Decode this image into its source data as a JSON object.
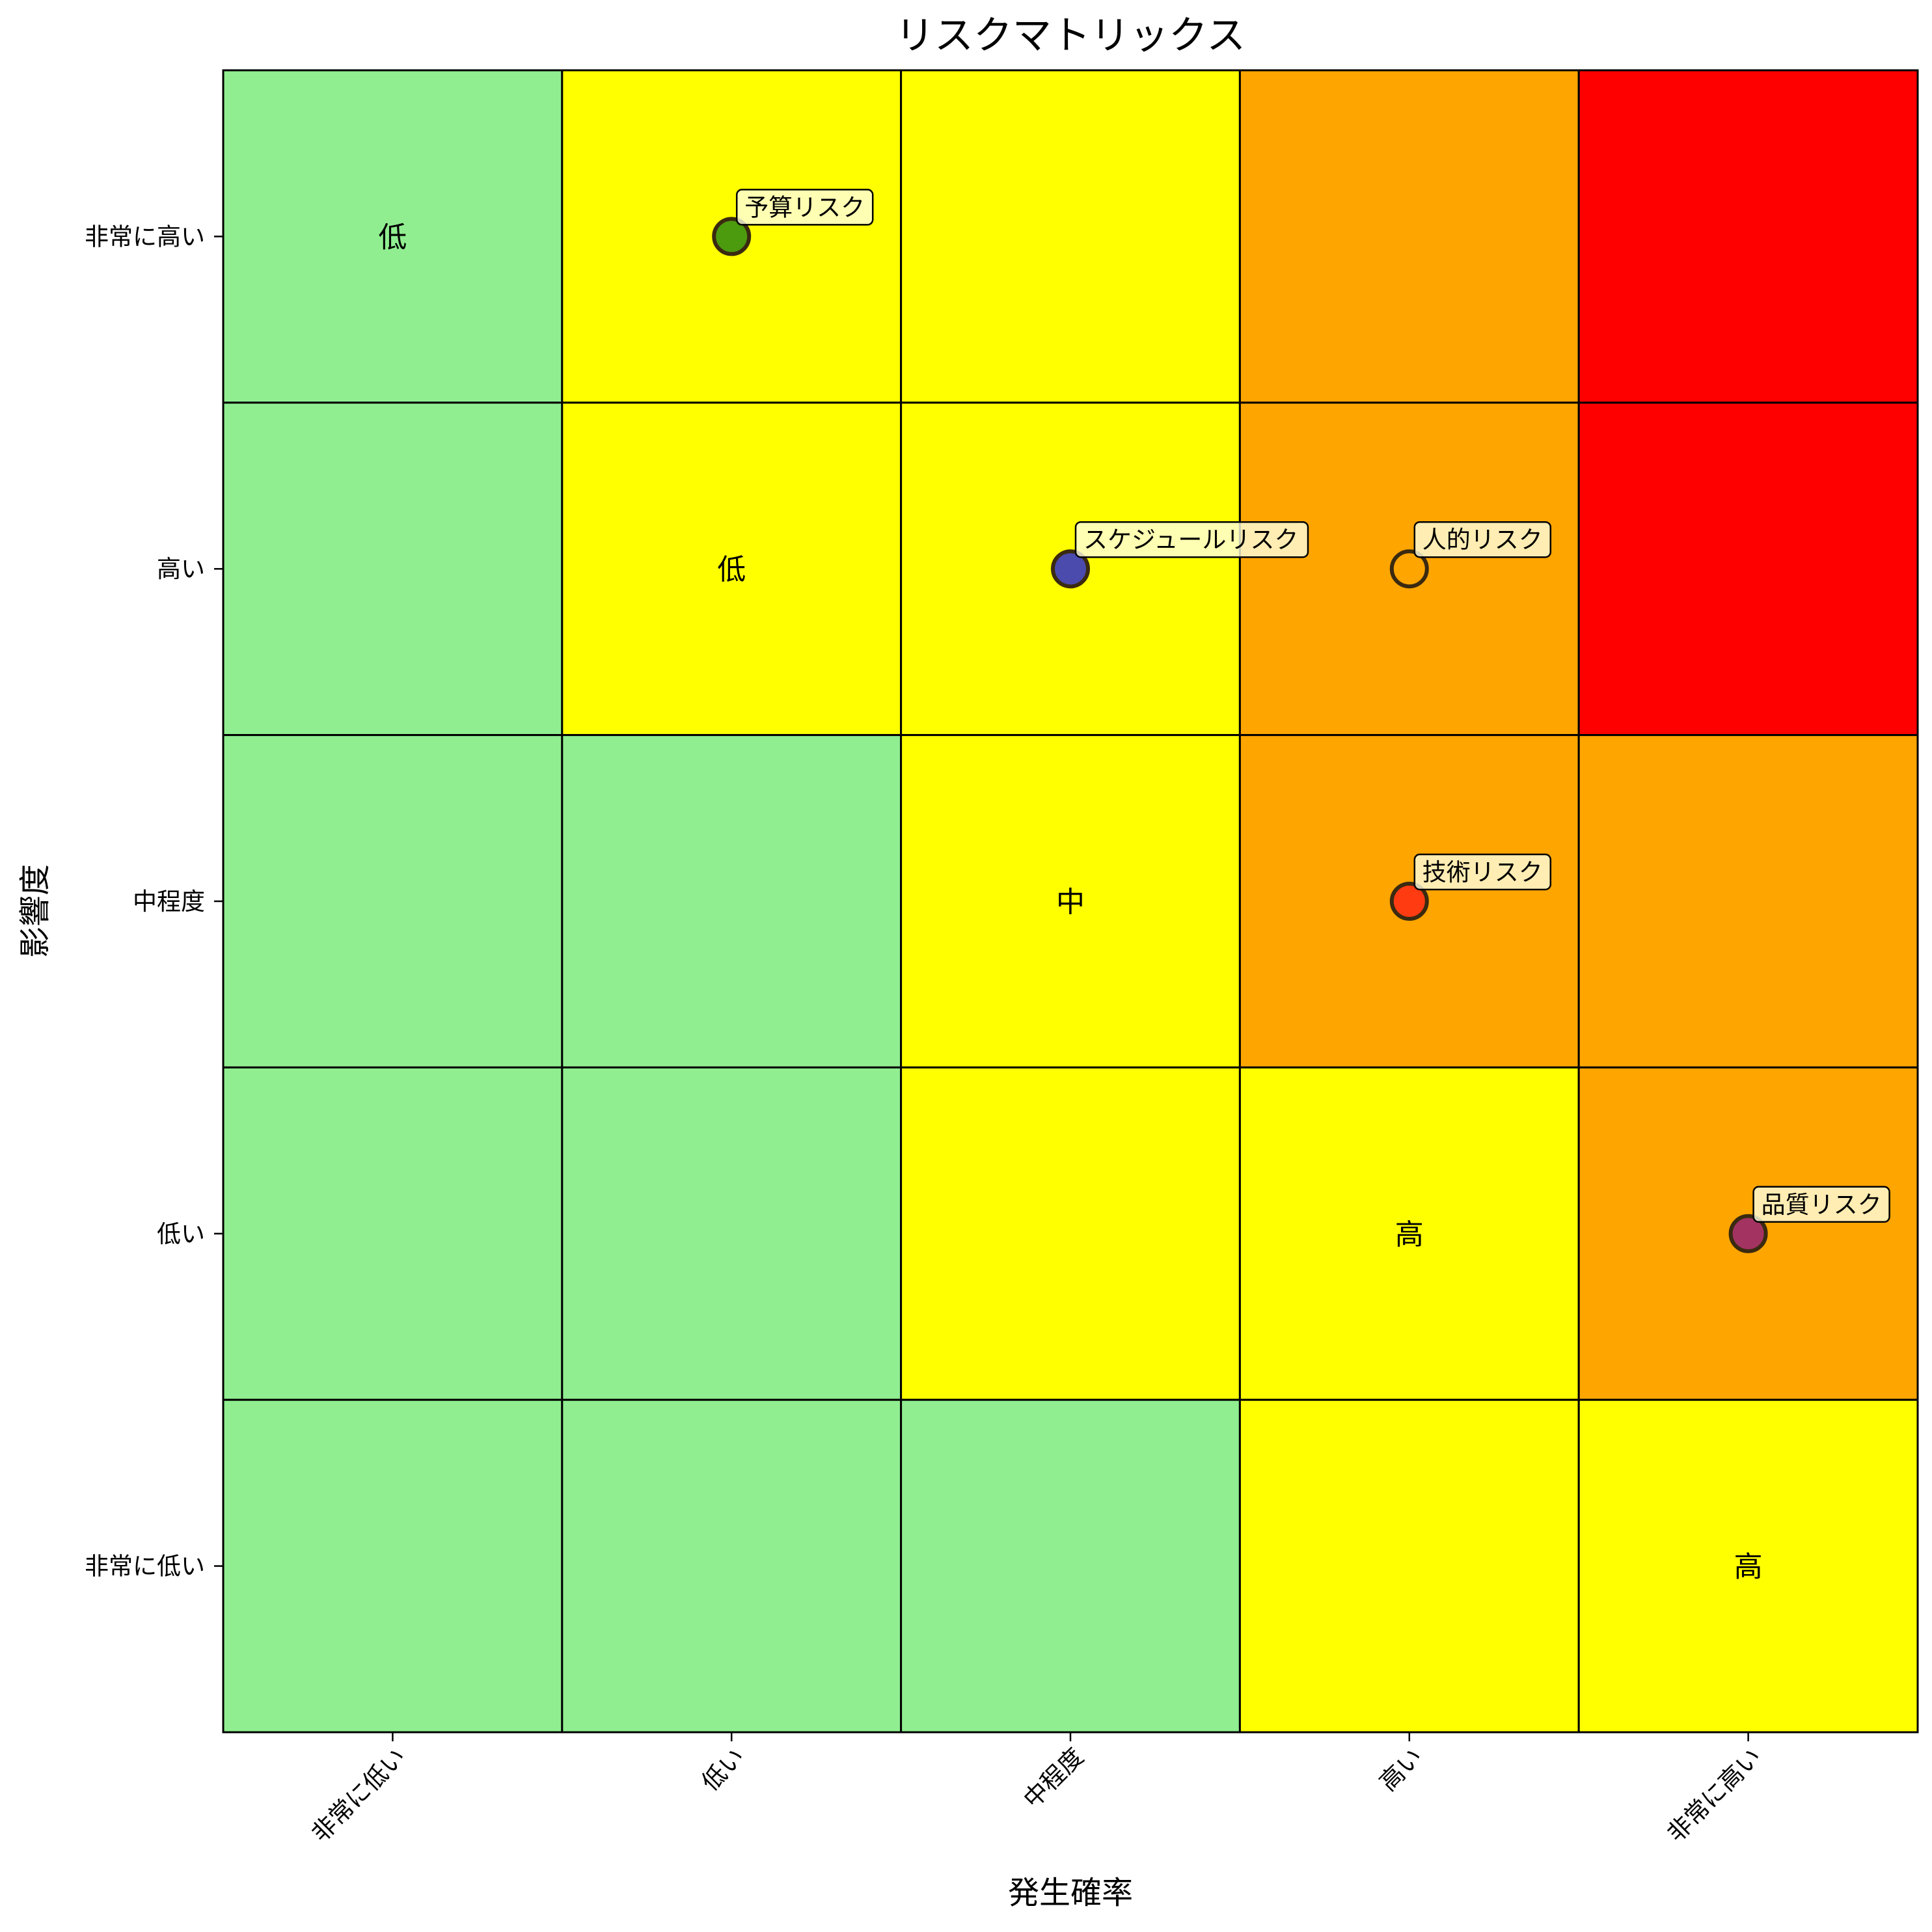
{
  "chart_data": {
    "type": "heatmap",
    "title": "リスクマトリックス",
    "xlabel": "発生確率",
    "ylabel": "影響度",
    "x_categories": [
      "非常に低い",
      "低い",
      "中程度",
      "高い",
      "非常に高い"
    ],
    "y_categories": [
      "非常に低い",
      "低い",
      "中程度",
      "高い",
      "非常に高い"
    ],
    "level_colors": {
      "light_green": "#90EE90",
      "yellow": "#FFFF00",
      "orange": "#FFA500",
      "red": "#FF0000"
    },
    "cell_grid_top_to_bottom": [
      [
        "light_green",
        "yellow",
        "yellow",
        "orange",
        "red"
      ],
      [
        "light_green",
        "yellow",
        "yellow",
        "orange",
        "red"
      ],
      [
        "light_green",
        "light_green",
        "yellow",
        "orange",
        "orange"
      ],
      [
        "light_green",
        "light_green",
        "yellow",
        "yellow",
        "orange"
      ],
      [
        "light_green",
        "light_green",
        "light_green",
        "yellow",
        "yellow"
      ]
    ],
    "cell_labels": [
      {
        "x": "非常に低い",
        "y": "非常に高い",
        "text": "低"
      },
      {
        "x": "低い",
        "y": "高い",
        "text": "低"
      },
      {
        "x": "中程度",
        "y": "中程度",
        "text": "中"
      },
      {
        "x": "高い",
        "y": "低い",
        "text": "高"
      },
      {
        "x": "非常に高い",
        "y": "非常に低い",
        "text": "高"
      }
    ],
    "risks": [
      {
        "name": "予算リスク",
        "x": "低い",
        "y": "非常に高い",
        "color": "#4C9A0E"
      },
      {
        "name": "スケジュールリスク",
        "x": "中程度",
        "y": "高い",
        "color": "#4B4BAE"
      },
      {
        "name": "人的リスク",
        "x": "高い",
        "y": "高い",
        "color": "#FFA500"
      },
      {
        "name": "技術リスク",
        "x": "高い",
        "y": "中程度",
        "color": "#FF3B11"
      },
      {
        "name": "品質リスク",
        "x": "非常に高い",
        "y": "低い",
        "color": "#A33361"
      }
    ],
    "grid": true,
    "legend": "none"
  }
}
